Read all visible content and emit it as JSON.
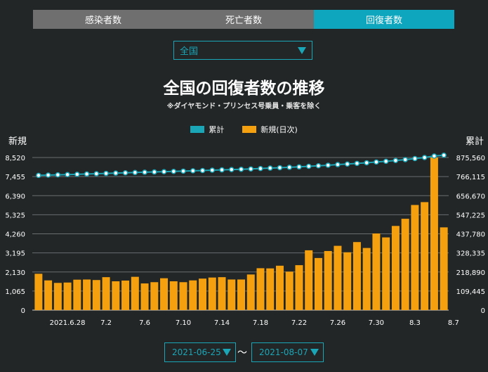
{
  "tabs": [
    {
      "label": "感染者数",
      "active": false
    },
    {
      "label": "死亡者数",
      "active": false
    },
    {
      "label": "回復者数",
      "active": true
    }
  ],
  "region_select": {
    "value": "全国"
  },
  "colors": {
    "accent": "#0ea5be",
    "tab_inactive": "#6f6f6f",
    "bar": "#f5a00f",
    "line": "#1aa6b7",
    "background": "#222627"
  },
  "date_range": {
    "start": "2021-06-25",
    "separator": "〜",
    "end": "2021-08-07"
  },
  "chart_data": {
    "type": "bar",
    "title": "全国の回復者数の推移",
    "subtitle": "※ダイヤモンド・プリンセス号乗員・乗客を除く",
    "left_axis_title": "新規",
    "right_axis_title": "累計",
    "legend": [
      "累計",
      "新規(日次)"
    ],
    "left_ticks": [
      "0",
      "1,065",
      "2,130",
      "3,195",
      "4,260",
      "5,325",
      "6,390",
      "7,455",
      "8,520"
    ],
    "right_ticks": [
      "0",
      "109,445",
      "218,890",
      "328,335",
      "437,780",
      "547,225",
      "656,670",
      "766,115",
      "875,560"
    ],
    "ylim_left": [
      0,
      8520
    ],
    "ylim_right": [
      0,
      875560
    ],
    "x_tick_labels": [
      "2021.6.28",
      "7.2",
      "7.6",
      "7.10",
      "7.14",
      "7.18",
      "7.22",
      "7.26",
      "7.30",
      "8.3",
      "8.7"
    ],
    "grid": true,
    "series": [
      {
        "name": "新規(日次)",
        "type": "bar",
        "axis": "left",
        "values": [
          2030,
          1660,
          1520,
          1540,
          1700,
          1710,
          1680,
          1840,
          1610,
          1650,
          1860,
          1490,
          1560,
          1780,
          1610,
          1560,
          1660,
          1760,
          1820,
          1840,
          1710,
          1710,
          1990,
          2340,
          2330,
          2480,
          2150,
          2510,
          3340,
          2910,
          3300,
          3590,
          3230,
          3800,
          3470,
          4280,
          4060,
          4700,
          5100,
          5870,
          6030,
          8520,
          4620
        ]
      },
      {
        "name": "累計",
        "type": "line",
        "axis": "right",
        "values": [
          773000,
          774600,
          776100,
          777600,
          779300,
          781000,
          782700,
          784500,
          786100,
          787800,
          789600,
          791100,
          792700,
          794400,
          796000,
          797600,
          799300,
          801000,
          802900,
          804700,
          806400,
          808100,
          810100,
          812400,
          814800,
          817200,
          819400,
          821900,
          825200,
          828100,
          831400,
          835000,
          838200,
          842000,
          845500,
          849800,
          853800,
          858500,
          863600,
          869500,
          875500,
          884000,
          888600
        ]
      }
    ]
  }
}
